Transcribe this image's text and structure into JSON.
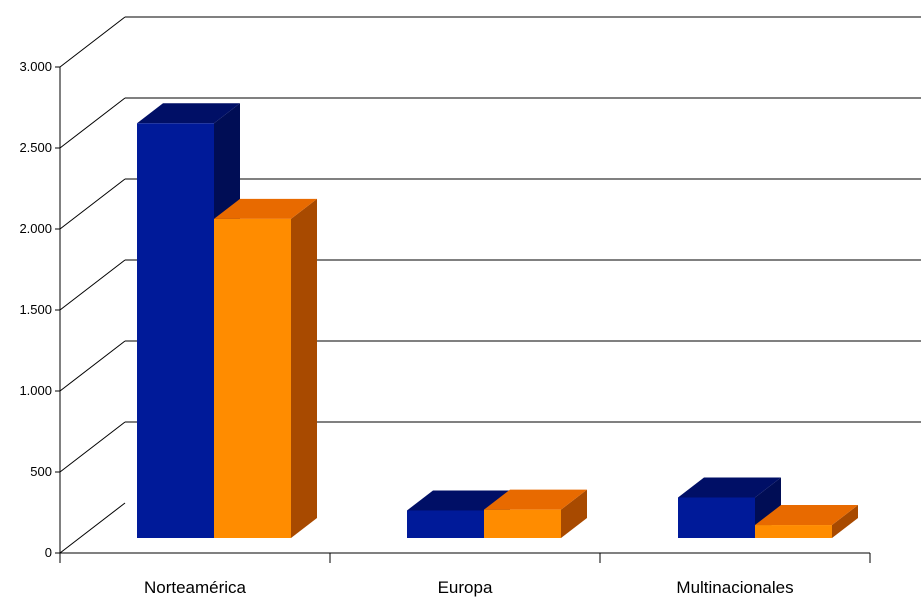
{
  "chart_data": {
    "type": "bar",
    "categories": [
      "Norteamérica",
      "Europa",
      "Multinacionales"
    ],
    "series": [
      {
        "values": [
          2560,
          170,
          250
        ],
        "color": "#001a99",
        "top_color": "#000f66",
        "side_color": "#000d55"
      },
      {
        "values": [
          1970,
          175,
          80
        ],
        "color": "#ff8c00",
        "top_color": "#e86a00",
        "side_color": "#a84a00"
      }
    ],
    "y_ticks": [
      0,
      500,
      1000,
      1500,
      2000,
      2500,
      3000
    ],
    "y_tick_labels": [
      "0",
      "500",
      "1.000",
      "1.500",
      "2.000",
      "2.500",
      "3.000"
    ],
    "ylim": [
      0,
      3000
    ],
    "grid": true,
    "legend": "none",
    "projection": "3d",
    "title": "",
    "xlabel": "",
    "ylabel": ""
  }
}
